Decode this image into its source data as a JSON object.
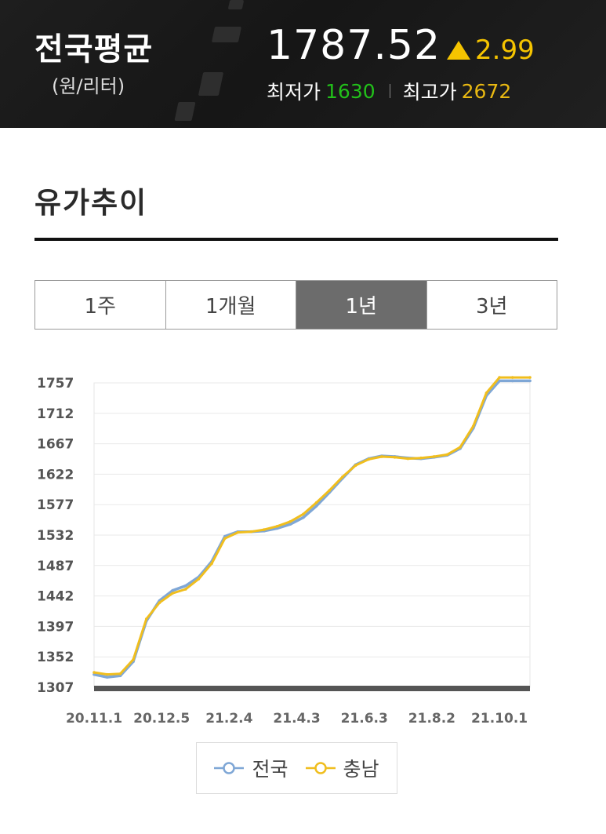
{
  "header": {
    "region_title": "전국평균",
    "unit": "(원/리터)",
    "avg_price": "1787.52",
    "change_value": "2.99",
    "min_label": "최저가",
    "min_value": "1630",
    "max_label": "최고가",
    "max_value": "2672"
  },
  "section": {
    "title": "유가추이"
  },
  "tabs": [
    {
      "label": "1주",
      "active": false
    },
    {
      "label": "1개월",
      "active": false
    },
    {
      "label": "1년",
      "active": true
    },
    {
      "label": "3년",
      "active": false
    }
  ],
  "colors": {
    "header_bg": "#1b1b1b",
    "up": "#f5c400",
    "min": "#22c01a",
    "max": "#e8b812",
    "series_national": "#7fa7d6",
    "series_chungnam": "#f0be1e",
    "tab_active": "#6c6c6c"
  },
  "icons": {
    "change": "up-triangle-icon"
  },
  "chart_data": {
    "type": "line",
    "title": "",
    "xlabel": "",
    "ylabel": "",
    "ylim": [
      1307,
      1757
    ],
    "yticks": [
      1307,
      1352,
      1397,
      1442,
      1487,
      1532,
      1577,
      1622,
      1667,
      1712,
      1757
    ],
    "xticks": [
      "20.11.1",
      "20.12.5",
      "21.2.4",
      "21.4.3",
      "21.6.3",
      "21.8.2",
      "21.10.1"
    ],
    "x": [
      0,
      0.03,
      0.06,
      0.09,
      0.12,
      0.15,
      0.18,
      0.21,
      0.24,
      0.27,
      0.3,
      0.33,
      0.36,
      0.39,
      0.42,
      0.45,
      0.48,
      0.51,
      0.54,
      0.57,
      0.6,
      0.63,
      0.66,
      0.69,
      0.72,
      0.75,
      0.78,
      0.81,
      0.84,
      0.87,
      0.9,
      0.93,
      0.96,
      1
    ],
    "legend_position": "bottom",
    "grid": true,
    "series": [
      {
        "name": "전국",
        "values": [
          1326,
          1322,
          1324,
          1345,
          1405,
          1435,
          1450,
          1457,
          1470,
          1493,
          1530,
          1537,
          1537,
          1538,
          1542,
          1548,
          1558,
          1575,
          1595,
          1616,
          1636,
          1645,
          1649,
          1648,
          1646,
          1645,
          1647,
          1650,
          1660,
          1690,
          1738,
          1760,
          1760,
          1760
        ]
      },
      {
        "name": "충남",
        "values": [
          1329,
          1326,
          1327,
          1348,
          1408,
          1432,
          1446,
          1452,
          1467,
          1490,
          1527,
          1536,
          1537,
          1540,
          1545,
          1552,
          1563,
          1580,
          1598,
          1618,
          1635,
          1644,
          1648,
          1647,
          1645,
          1646,
          1648,
          1651,
          1662,
          1693,
          1742,
          1765,
          1765,
          1765
        ]
      }
    ]
  }
}
